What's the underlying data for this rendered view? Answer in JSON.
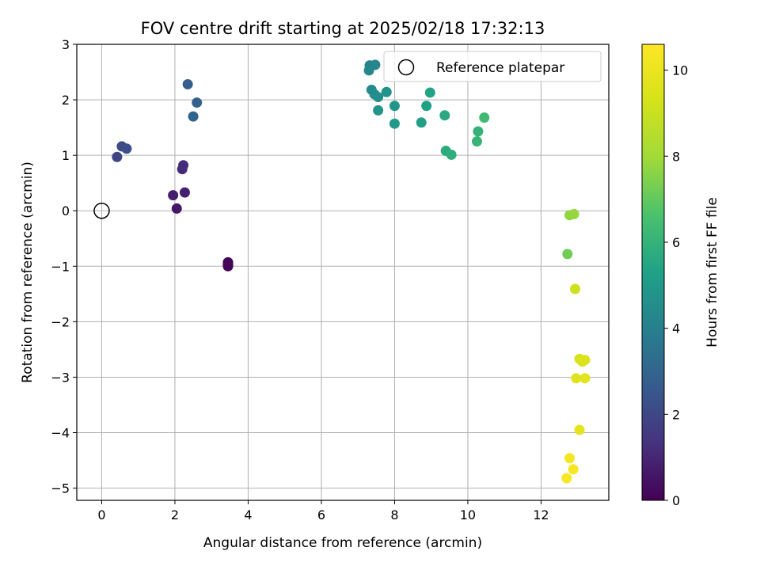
{
  "chart_data": {
    "type": "scatter",
    "title": "FOV centre drift starting at 2025/02/18 17:32:13",
    "xlabel": "Angular distance from reference (arcmin)",
    "ylabel": "Rotation from reference (arcmin)",
    "xlim": [
      -0.68,
      13.85
    ],
    "ylim": [
      -5.22,
      3.0
    ],
    "xticks": [
      0,
      2,
      4,
      6,
      8,
      10,
      12
    ],
    "yticks": [
      -5,
      -4,
      -3,
      -2,
      -1,
      0,
      1,
      2,
      3
    ],
    "grid": true,
    "legend": {
      "position": "top-right",
      "entries": [
        "Reference platepar"
      ]
    },
    "reference_point": {
      "x": 0,
      "y": 0
    },
    "colorbar": {
      "label": "Hours from first FF file",
      "range": [
        0,
        10.6
      ],
      "ticks": [
        0,
        2,
        4,
        6,
        8,
        10
      ],
      "colormap": "viridis"
    },
    "points": [
      {
        "x": 3.45,
        "y": -0.93,
        "h": 0.0
      },
      {
        "x": 3.45,
        "y": -0.97,
        "h": 0.02
      },
      {
        "x": 3.45,
        "y": -1.0,
        "h": 0.04
      },
      {
        "x": 3.45,
        "y": -0.95,
        "h": 0.06
      },
      {
        "x": 2.05,
        "y": 0.04,
        "h": 0.6
      },
      {
        "x": 1.95,
        "y": 0.28,
        "h": 0.8
      },
      {
        "x": 2.27,
        "y": 0.33,
        "h": 0.9
      },
      {
        "x": 2.2,
        "y": 0.75,
        "h": 1.1
      },
      {
        "x": 2.23,
        "y": 0.82,
        "h": 1.2
      },
      {
        "x": 0.42,
        "y": 0.97,
        "h": 1.9
      },
      {
        "x": 0.55,
        "y": 1.16,
        "h": 2.1
      },
      {
        "x": 0.68,
        "y": 1.12,
        "h": 2.2
      },
      {
        "x": 2.35,
        "y": 2.28,
        "h": 2.7
      },
      {
        "x": 2.6,
        "y": 1.95,
        "h": 2.9
      },
      {
        "x": 2.5,
        "y": 1.7,
        "h": 3.0
      },
      {
        "x": 7.32,
        "y": 2.62,
        "h": 4.1
      },
      {
        "x": 7.47,
        "y": 2.63,
        "h": 4.2
      },
      {
        "x": 7.3,
        "y": 2.53,
        "h": 4.3
      },
      {
        "x": 7.37,
        "y": 2.18,
        "h": 4.4
      },
      {
        "x": 7.45,
        "y": 2.1,
        "h": 4.5
      },
      {
        "x": 7.55,
        "y": 2.05,
        "h": 4.6
      },
      {
        "x": 7.78,
        "y": 2.14,
        "h": 4.7
      },
      {
        "x": 7.55,
        "y": 1.81,
        "h": 4.8
      },
      {
        "x": 8.0,
        "y": 1.89,
        "h": 4.9
      },
      {
        "x": 8.0,
        "y": 1.57,
        "h": 5.0
      },
      {
        "x": 8.73,
        "y": 1.59,
        "h": 5.2
      },
      {
        "x": 8.87,
        "y": 1.89,
        "h": 5.3
      },
      {
        "x": 8.97,
        "y": 2.13,
        "h": 5.4
      },
      {
        "x": 9.37,
        "y": 1.72,
        "h": 5.6
      },
      {
        "x": 9.4,
        "y": 1.08,
        "h": 5.7
      },
      {
        "x": 9.55,
        "y": 1.01,
        "h": 5.8
      },
      {
        "x": 10.28,
        "y": 1.43,
        "h": 6.0
      },
      {
        "x": 10.25,
        "y": 1.25,
        "h": 6.1
      },
      {
        "x": 10.45,
        "y": 1.68,
        "h": 6.3
      },
      {
        "x": 12.72,
        "y": -0.78,
        "h": 7.2
      },
      {
        "x": 12.78,
        "y": -0.08,
        "h": 7.7
      },
      {
        "x": 12.9,
        "y": -0.06,
        "h": 7.8
      },
      {
        "x": 12.93,
        "y": -1.41,
        "h": 9.1
      },
      {
        "x": 13.05,
        "y": -2.67,
        "h": 9.3
      },
      {
        "x": 13.13,
        "y": -2.72,
        "h": 9.4
      },
      {
        "x": 13.2,
        "y": -2.69,
        "h": 9.5
      },
      {
        "x": 12.96,
        "y": -3.02,
        "h": 9.6
      },
      {
        "x": 13.2,
        "y": -3.02,
        "h": 9.7
      },
      {
        "x": 13.05,
        "y": -3.95,
        "h": 9.8
      },
      {
        "x": 12.78,
        "y": -4.46,
        "h": 10.3
      },
      {
        "x": 12.88,
        "y": -4.66,
        "h": 10.4
      },
      {
        "x": 12.7,
        "y": -4.82,
        "h": 10.5
      }
    ]
  }
}
